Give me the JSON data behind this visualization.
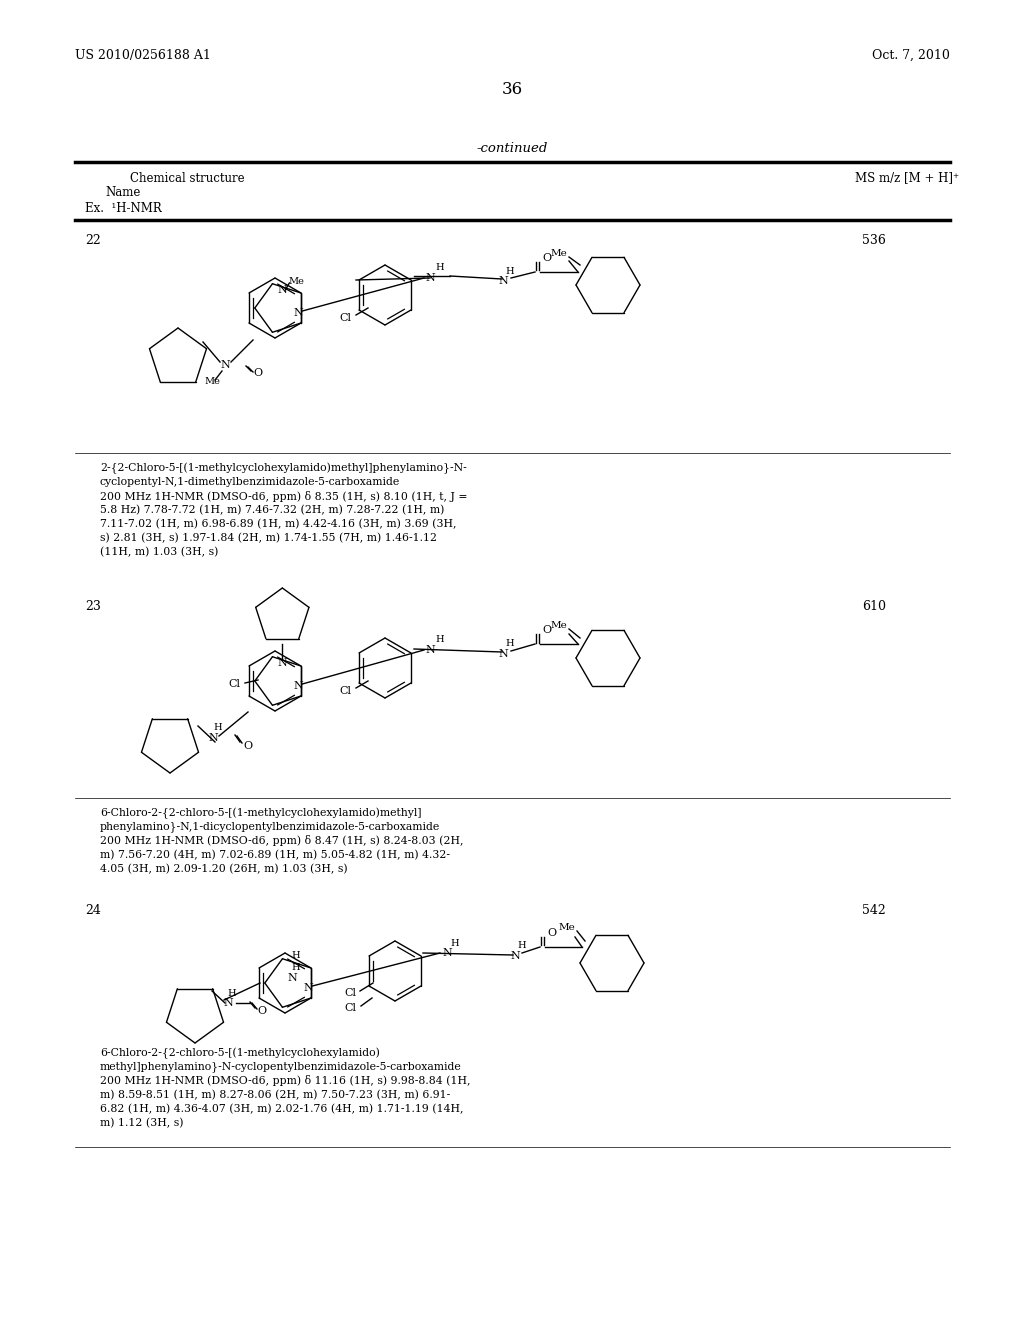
{
  "bg_color": "#ffffff",
  "header_left": "US 2010/0256188 A1",
  "header_right": "Oct. 7, 2010",
  "page_number": "36",
  "continued_text": "-continued",
  "col1_header": "Chemical structure",
  "col1_sub1": "Name",
  "col1_sub2": "Ex.  ¹H-NMR",
  "col2_header": "MS m/z [M + H]⁺",
  "entries": [
    {
      "ex_num": "22",
      "ms_value": "536",
      "name_line1": "2-{2-Chloro-5-[(1-methylcyclohexylamido)methyl]phenylamino}-N-",
      "name_line2": "cyclopentyl-N,1-dimethylbenzimidazole-5-carboxamide",
      "nmr_line1": "200 MHz 1H-NMR (DMSO-d6, ppm) δ 8.35 (1H, s) 8.10 (1H, t, J =",
      "nmr_line2": "5.8 Hz) 7.78-7.72 (1H, m) 7.46-7.32 (2H, m) 7.28-7.22 (1H, m)",
      "nmr_line3": "7.11-7.02 (1H, m) 6.98-6.89 (1H, m) 4.42-4.16 (3H, m) 3.69 (3H,",
      "nmr_line4": "s) 2.81 (3H, s) 1.97-1.84 (2H, m) 1.74-1.55 (7H, m) 1.46-1.12",
      "nmr_line5": "(11H, m) 1.03 (3H, s)"
    },
    {
      "ex_num": "23",
      "ms_value": "610",
      "name_line1": "6-Chloro-2-{2-chloro-5-[(1-methylcyclohexylamido)methyl]",
      "name_line2": "phenylamino}-N,1-dicyclopentylbenzimidazole-5-carboxamide",
      "nmr_line1": "200 MHz 1H-NMR (DMSO-d6, ppm) δ 8.47 (1H, s) 8.24-8.03 (2H,",
      "nmr_line2": "m) 7.56-7.20 (4H, m) 7.02-6.89 (1H, m) 5.05-4.82 (1H, m) 4.32-",
      "nmr_line3": "4.05 (3H, m) 2.09-1.20 (26H, m) 1.03 (3H, s)",
      "nmr_line4": "",
      "nmr_line5": ""
    },
    {
      "ex_num": "24",
      "ms_value": "542",
      "name_line1": "6-Chloro-2-{2-chloro-5-[(1-methylcyclohexylamido)",
      "name_line2": "methyl]phenylamino}-N-cyclopentylbenzimidazole-5-carboxamide",
      "nmr_line1": "200 MHz 1H-NMR (DMSO-d6, ppm) δ 11.16 (1H, s) 9.98-8.84 (1H,",
      "nmr_line2": "m) 8.59-8.51 (1H, m) 8.27-8.06 (2H, m) 7.50-7.23 (3H, m) 6.91-",
      "nmr_line3": "6.82 (1H, m) 4.36-4.07 (3H, m) 2.02-1.76 (4H, m) 1.71-1.19 (14H,",
      "nmr_line4": "m) 1.12 (3H, s)",
      "nmr_line5": ""
    }
  ]
}
